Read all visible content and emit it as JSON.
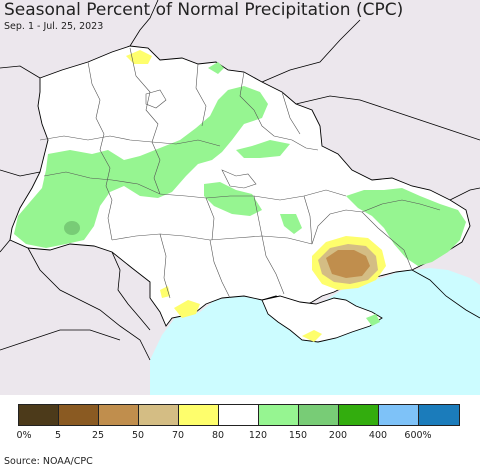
{
  "title": "Seasonal Percent of Normal Precipitation (CPC)",
  "subtitle": "Sep. 1 - Jul. 25, 2023",
  "source": "Source: NOAA/CPC",
  "colors": {
    "land": "#ffffff",
    "outside": "#ece7ed",
    "water": "#ccfcff",
    "border": "#000000",
    "admin": "#555555"
  },
  "legend": {
    "colors": [
      "#4c3a1a",
      "#8a5a22",
      "#c08e4d",
      "#d4bd84",
      "#fefe6c",
      "#ffffff",
      "#96f591",
      "#78cc76",
      "#33ad0e",
      "#7ec2f8",
      "#1b7cbb"
    ],
    "ticks": [
      "0%",
      "5",
      "25",
      "50",
      "70",
      "80",
      "120",
      "150",
      "200",
      "400",
      "600%"
    ]
  }
}
